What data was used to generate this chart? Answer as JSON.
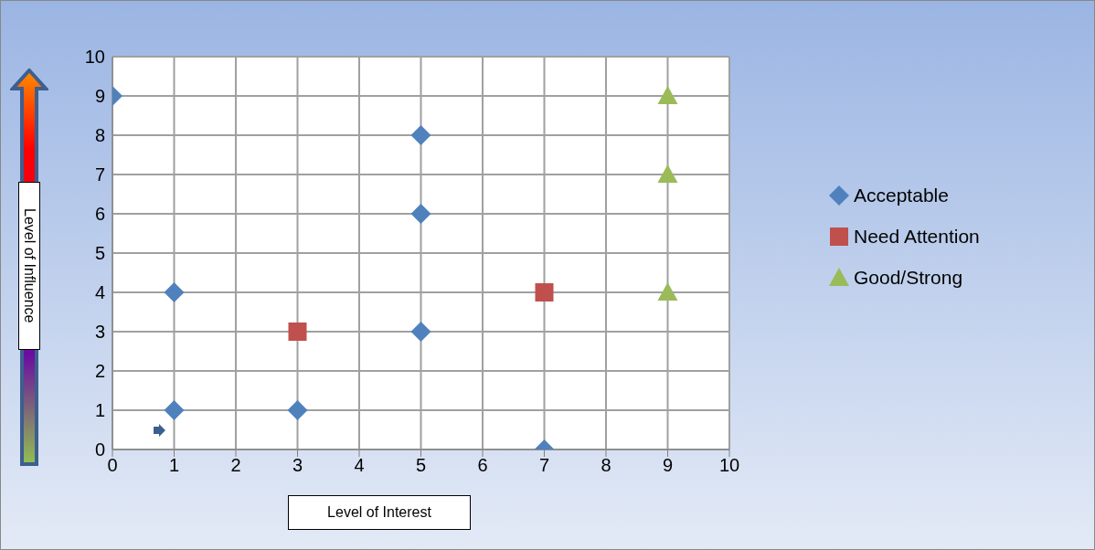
{
  "chart_data": {
    "type": "scatter",
    "xlabel": "Level of Interest",
    "ylabel": "Level of Influence",
    "xlim": [
      0,
      10
    ],
    "ylim": [
      0,
      10
    ],
    "xticks": [
      0,
      1,
      2,
      3,
      4,
      5,
      6,
      7,
      8,
      9,
      10
    ],
    "yticks": [
      0,
      1,
      2,
      3,
      4,
      5,
      6,
      7,
      8,
      9,
      10
    ],
    "grid": true,
    "legend": "right",
    "series": [
      {
        "name": "Acceptable",
        "color": "#4f81bd",
        "marker": "diamond",
        "x": [
          0,
          1,
          1,
          3,
          5,
          5,
          5,
          7
        ],
        "values": [
          9,
          4,
          1,
          1,
          8,
          6,
          3,
          0
        ]
      },
      {
        "name": "Need Attention",
        "color": "#c0504d",
        "marker": "square",
        "x": [
          3,
          7
        ],
        "values": [
          3,
          4
        ]
      },
      {
        "name": "Good/Strong",
        "color": "#9bbb59",
        "marker": "triangle",
        "x": [
          9,
          9,
          9
        ],
        "values": [
          9,
          7,
          4
        ]
      }
    ]
  }
}
